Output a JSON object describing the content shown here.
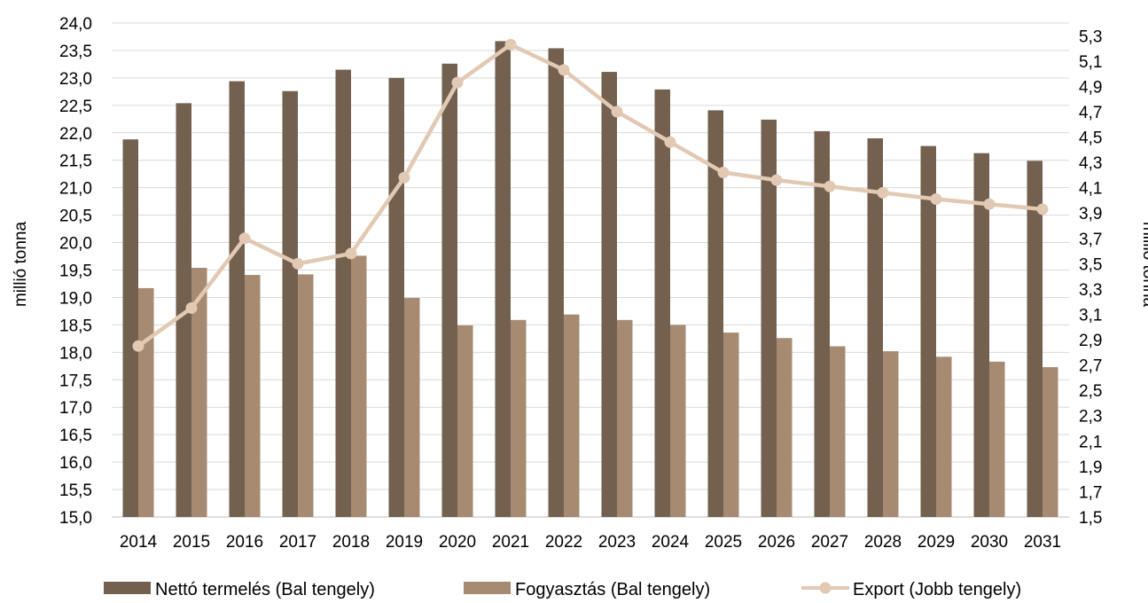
{
  "chart_data": {
    "type": "bar",
    "categories": [
      "2014",
      "2015",
      "2016",
      "2017",
      "2018",
      "2019",
      "2020",
      "2021",
      "2022",
      "2023",
      "2024",
      "2025",
      "2026",
      "2027",
      "2028",
      "2029",
      "2030",
      "2031"
    ],
    "series": [
      {
        "name": "Nettó termelés (Bal tengely)",
        "kind": "bar",
        "axis": "left",
        "color": "#73604f",
        "values": [
          21.88,
          22.54,
          22.94,
          22.76,
          23.15,
          23.0,
          23.26,
          23.67,
          23.54,
          23.11,
          22.79,
          22.41,
          22.24,
          22.03,
          21.9,
          21.76,
          21.63,
          21.49
        ]
      },
      {
        "name": "Fogyasztás (Bal tengely)",
        "kind": "bar",
        "axis": "left",
        "color": "#a68a71",
        "values": [
          19.17,
          19.54,
          19.41,
          19.42,
          19.76,
          18.99,
          18.49,
          18.59,
          18.69,
          18.59,
          18.5,
          18.36,
          18.26,
          18.11,
          18.02,
          17.92,
          17.83,
          17.73
        ]
      },
      {
        "name": "Export (Jobb tengely)",
        "kind": "line",
        "axis": "right",
        "color": "#e2c9b3",
        "values": [
          2.85,
          3.15,
          3.7,
          3.5,
          3.58,
          4.18,
          4.93,
          5.23,
          5.03,
          4.7,
          4.46,
          4.22,
          4.16,
          4.11,
          4.06,
          4.01,
          3.97,
          3.93
        ]
      }
    ],
    "y_left": {
      "label": "millió tonna",
      "ylim": [
        15.0,
        24.0
      ],
      "ticks": [
        "15,0",
        "15,5",
        "16,0",
        "16,5",
        "17,0",
        "17,5",
        "18,0",
        "18,5",
        "19,0",
        "19,5",
        "20,0",
        "20,5",
        "21,0",
        "21,5",
        "22,0",
        "22,5",
        "23,0",
        "23,5",
        "24,0"
      ]
    },
    "y_right": {
      "label": "millió tonna",
      "ylim": [
        1.5,
        5.4
      ],
      "ticks": [
        "1,5",
        "1,7",
        "1,9",
        "2,1",
        "2,3",
        "2,5",
        "2,7",
        "2,9",
        "3,1",
        "3,3",
        "3,5",
        "3,7",
        "3,9",
        "4,1",
        "4,3",
        "4,5",
        "4,7",
        "4,9",
        "5,1",
        "5,3"
      ]
    },
    "grid": true,
    "legend_position": "bottom"
  }
}
